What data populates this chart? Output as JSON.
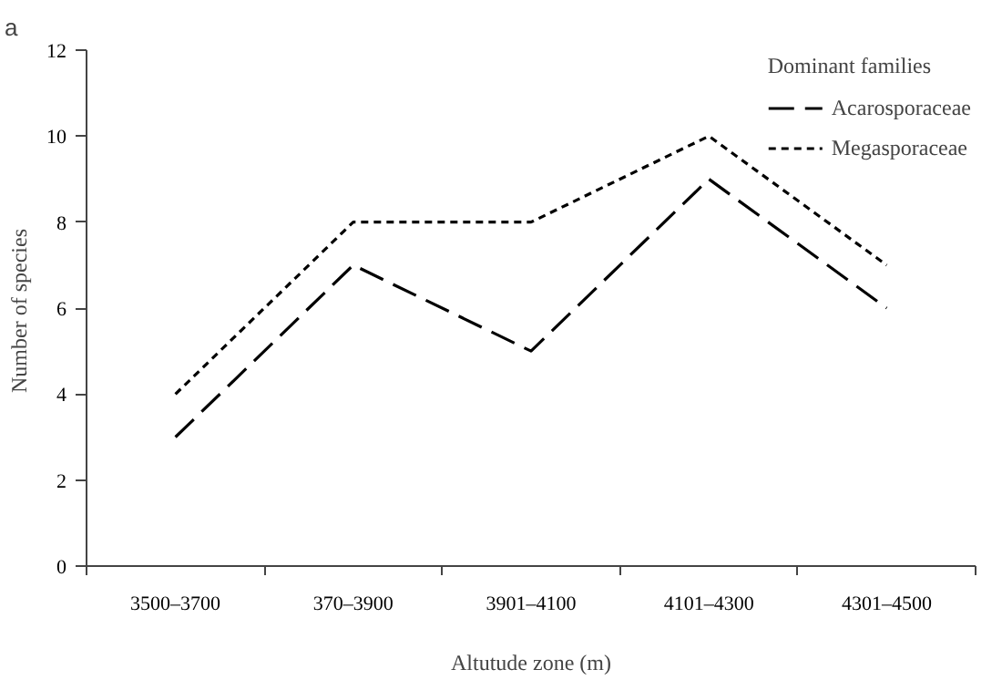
{
  "chart_data": {
    "type": "line",
    "ylabel": "Number of  species",
    "xlabel": "Altutude zone (m)",
    "legend_title": "Dominant families",
    "annotations": [
      "a"
    ],
    "categories": [
      "3500–3700",
      "370–3900",
      "3901–4100",
      "4101–4300",
      "4301–4500"
    ],
    "series": [
      {
        "name": "Acarosporaceae",
        "color": "#000000",
        "line_style": "dashed",
        "values": [
          3,
          7,
          5,
          9,
          6
        ]
      },
      {
        "name": "Megasporaceae",
        "color": "#000000",
        "line_style": "dotted",
        "values": [
          4,
          8,
          8,
          10,
          7
        ]
      }
    ],
    "ylim": [
      0,
      12
    ],
    "yticks": [
      0,
      2,
      4,
      6,
      8,
      10,
      12
    ],
    "grid": false,
    "legend": "top right",
    "marker": "none"
  }
}
